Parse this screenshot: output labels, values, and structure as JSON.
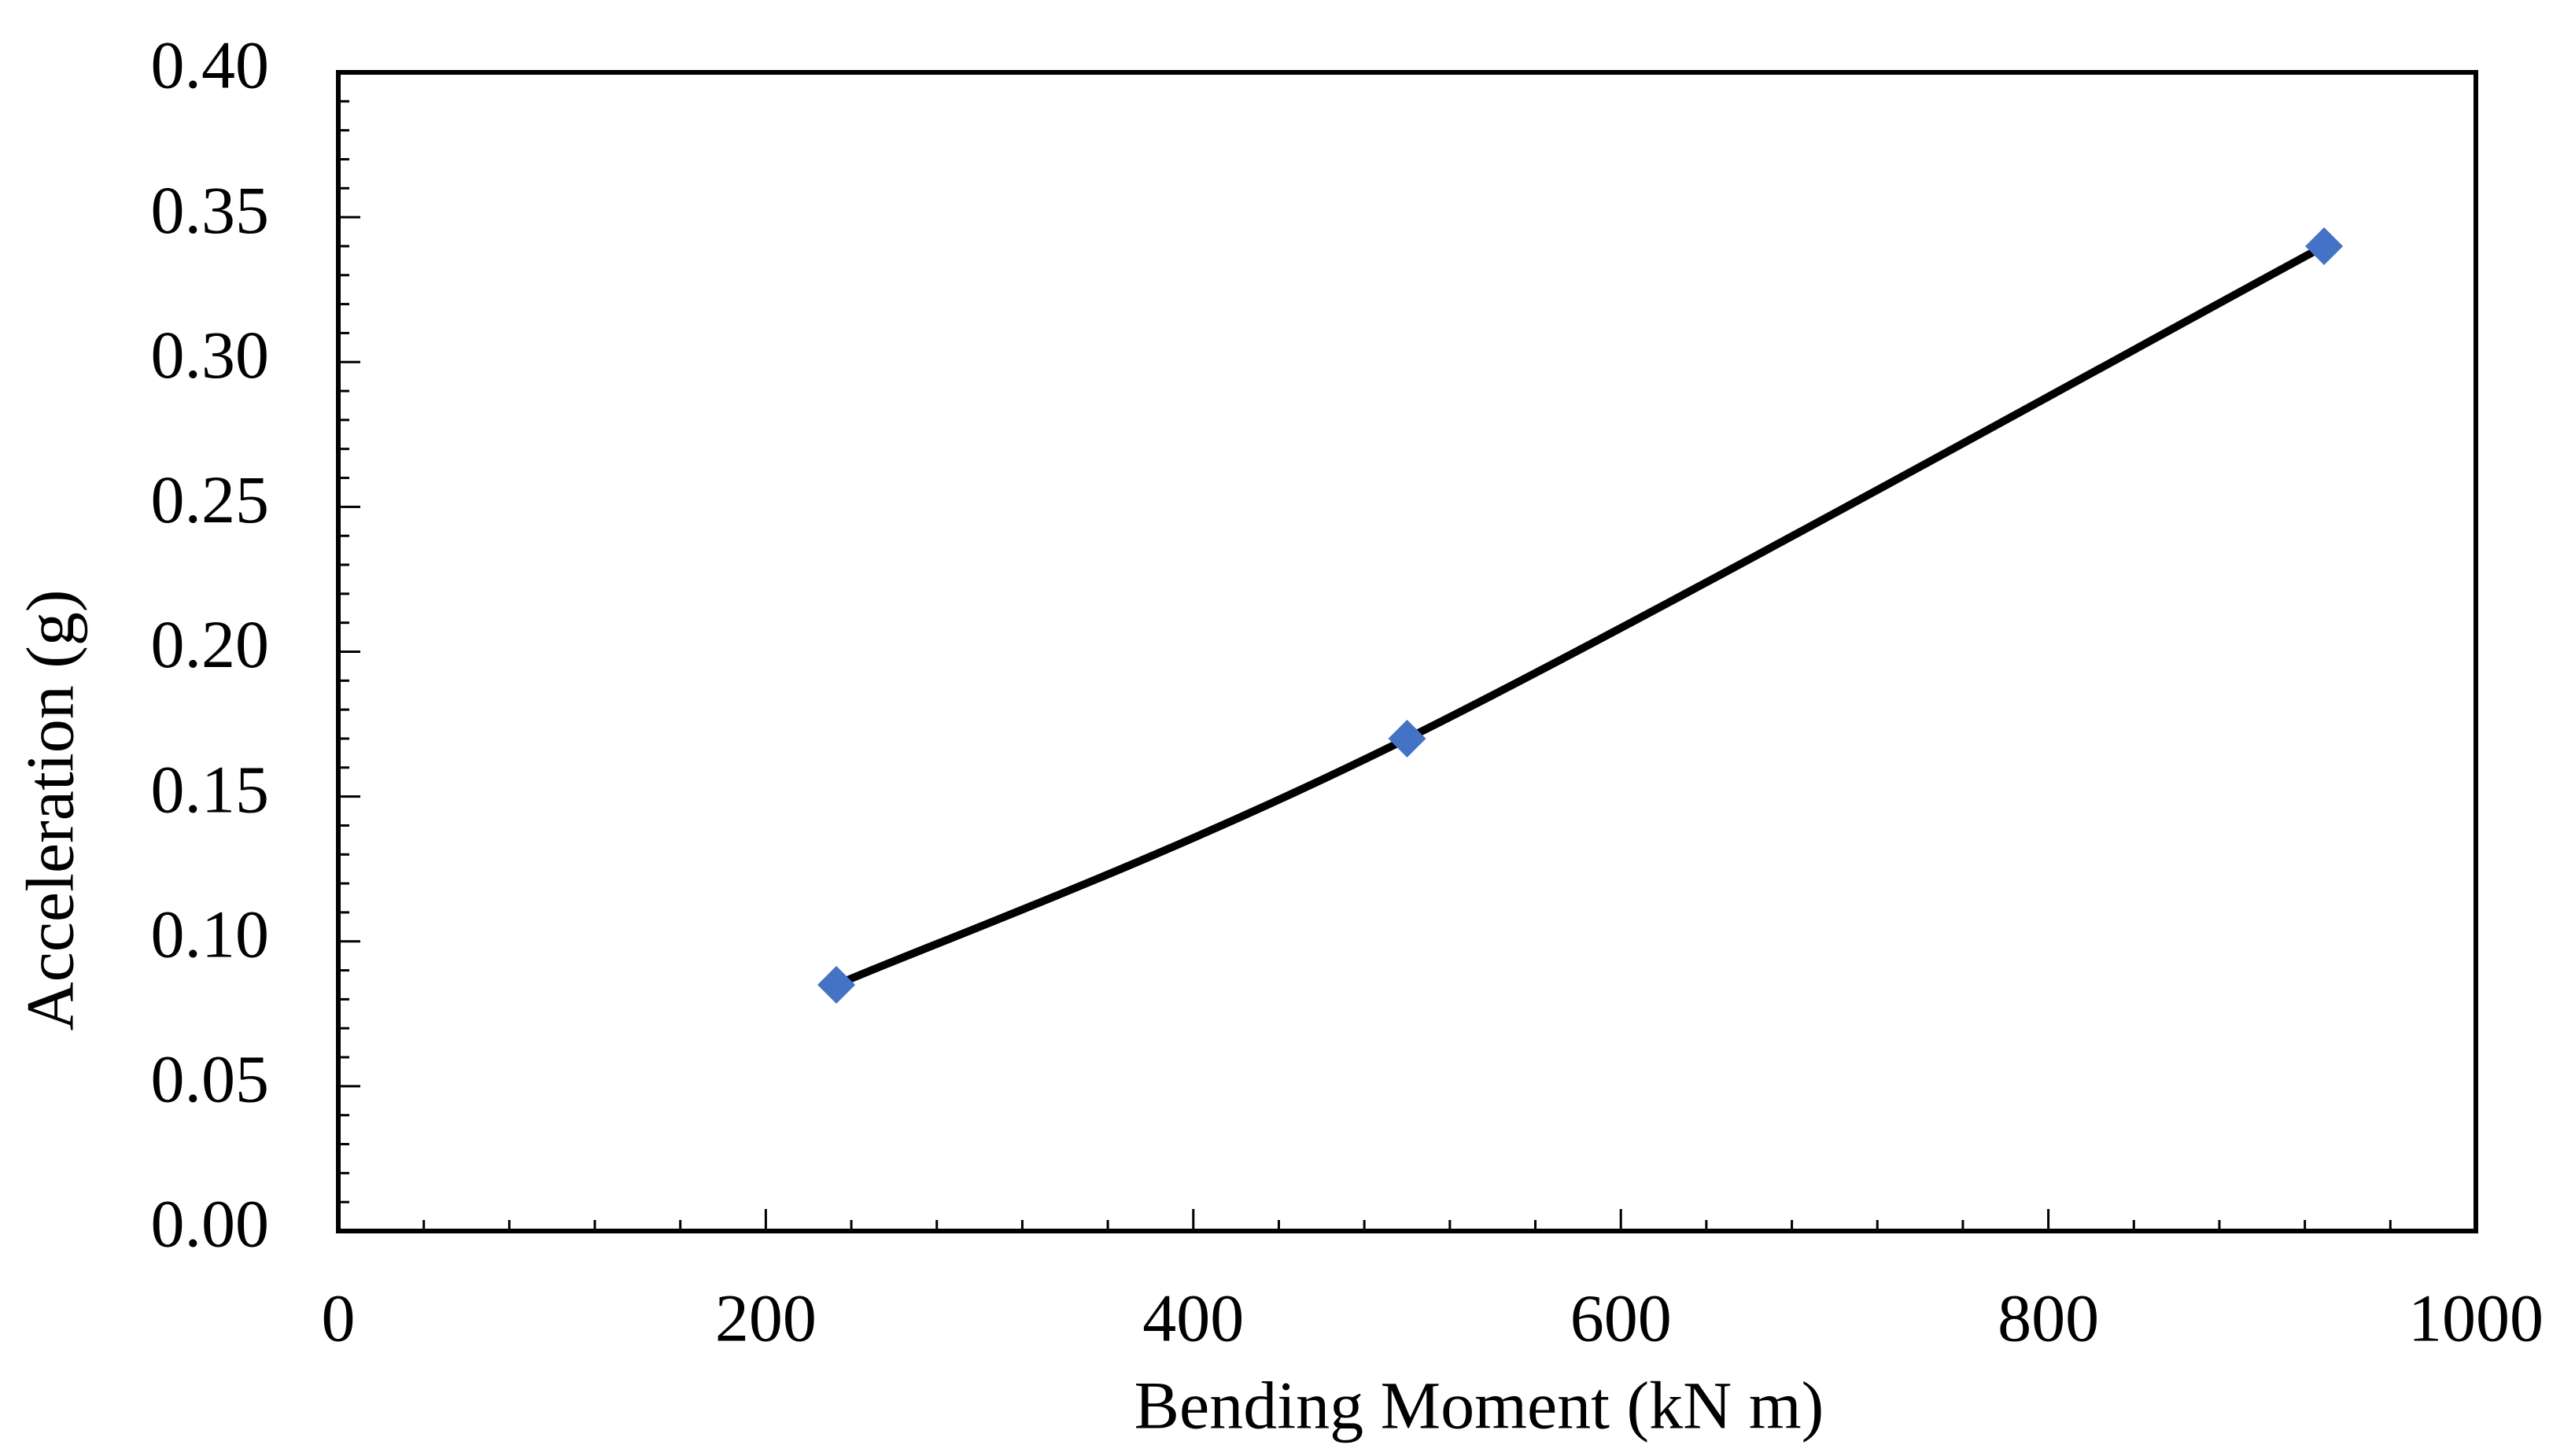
{
  "chart_data": {
    "type": "line",
    "x_label": "Bending Moment (kN m)",
    "y_label": "Acceleration (g)",
    "x": [
      233,
      500,
      929
    ],
    "series": [
      {
        "values": [
          0.085,
          0.17,
          0.34
        ],
        "color": "#4472c4",
        "line_color": "#000000"
      }
    ],
    "xlim": [
      0,
      1000
    ],
    "xticks": [
      0,
      200,
      400,
      600,
      800,
      1000
    ],
    "ylim": [
      0,
      0.4
    ],
    "yticks": [
      {
        "value": 0,
        "label": "0.00"
      },
      0.05,
      {
        "value": 0.1,
        "label": "0.10"
      },
      0.15,
      {
        "value": 0.2,
        "label": "0.20"
      },
      0.25,
      {
        "value": 0.3,
        "label": "0.30"
      },
      0.35,
      {
        "value": 0.4,
        "label": "0.40"
      }
    ],
    "grid": false
  }
}
